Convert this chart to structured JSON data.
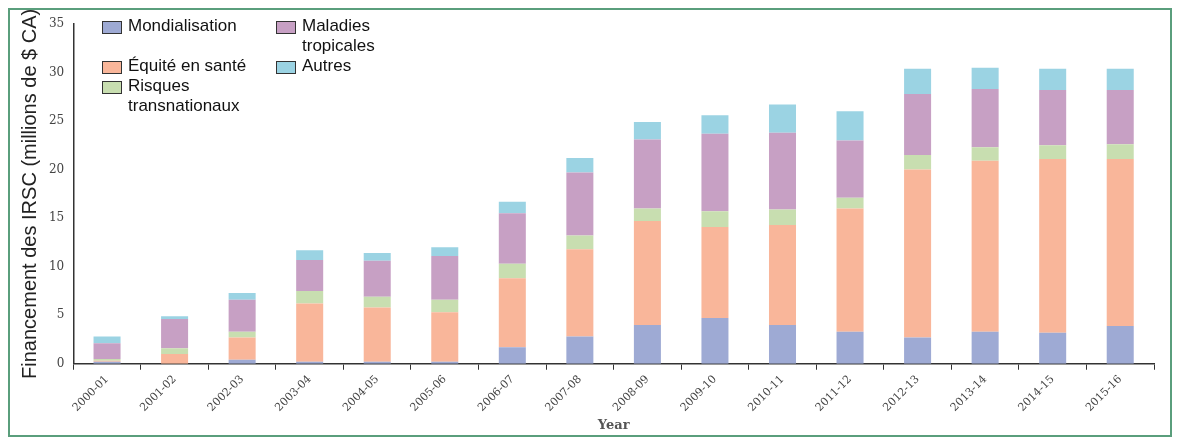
{
  "chart_data": {
    "type": "bar",
    "stacked": true,
    "xlabel": "Year",
    "ylabel": "Financement des IRSC (millions de $ CA)",
    "categories": [
      "2000-01",
      "2001-02",
      "2002-03",
      "2003-04",
      "2004-05",
      "2005-06",
      "2006-07",
      "2007-08",
      "2008-09",
      "2009-10",
      "2010-11",
      "2011-12",
      "2012-13",
      "2013-14",
      "2014-15",
      "2015-16"
    ],
    "series": [
      {
        "name": "Mondialisation",
        "color": "#9eaad4",
        "values": [
          0.2,
          0,
          0.4,
          0.2,
          0.2,
          0.2,
          1.7,
          2.8,
          4.0,
          4.7,
          4.0,
          3.3,
          2.7,
          3.3,
          3.2,
          3.9
        ]
      },
      {
        "name": "Équité en santé",
        "color": "#f9b69a",
        "values": [
          0.1,
          1.0,
          2.3,
          6.0,
          5.6,
          5.1,
          7.1,
          9.0,
          10.7,
          9.4,
          10.3,
          12.7,
          17.3,
          17.6,
          17.9,
          17.2
        ]
      },
      {
        "name": "Risques transnationaux",
        "color": "#c8deb0",
        "values": [
          0.2,
          0.6,
          0.6,
          1.3,
          1.1,
          1.3,
          1.5,
          1.4,
          1.3,
          1.6,
          1.6,
          1.1,
          1.5,
          1.4,
          1.4,
          1.5
        ]
      },
      {
        "name": "Maladies tropicales",
        "color": "#c7a0c4",
        "values": [
          1.6,
          3.0,
          3.3,
          3.2,
          3.7,
          4.5,
          5.2,
          6.5,
          7.1,
          8.0,
          7.9,
          5.9,
          6.3,
          6.0,
          5.7,
          5.6
        ]
      },
      {
        "name": "Autres",
        "color": "#9bd3e3",
        "values": [
          0.7,
          0.3,
          0.7,
          1.0,
          0.8,
          0.9,
          1.2,
          1.5,
          1.8,
          1.9,
          2.9,
          3.0,
          2.6,
          2.2,
          2.2,
          2.2
        ]
      }
    ],
    "ylim": [
      0,
      35
    ],
    "yticks": [
      0,
      5,
      10,
      15,
      20,
      25,
      30,
      35
    ],
    "grid": false,
    "legend": "top left"
  }
}
